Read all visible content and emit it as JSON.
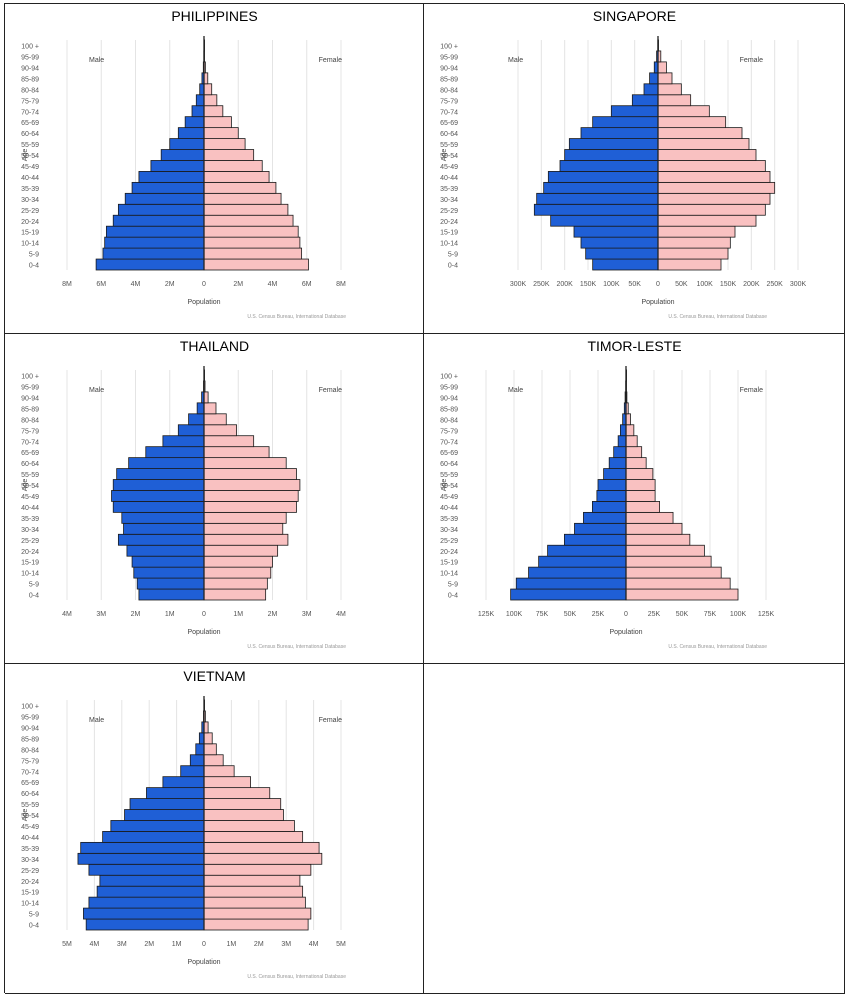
{
  "age_groups": [
    "0-4",
    "5-9",
    "10-14",
    "15-19",
    "20-24",
    "25-29",
    "30-34",
    "35-39",
    "40-44",
    "45-49",
    "50-54",
    "55-59",
    "60-64",
    "65-69",
    "70-74",
    "75-79",
    "80-84",
    "85-89",
    "90-94",
    "95-99",
    "100 +"
  ],
  "labels": {
    "male": "Male",
    "female": "Female",
    "age": "Age",
    "population": "Population",
    "source": "U.S. Census Bureau, International Database"
  },
  "colors": {
    "male": "#1f5fd6",
    "female": "#f9c1c1",
    "outline": "#1a1a1a",
    "grid": "#e4e4e4"
  },
  "chart_data": [
    {
      "type": "bar",
      "title": "PHILIPPINES",
      "xlabel": "Population",
      "ylabel": "Age",
      "xlim": [
        -8000000,
        8000000
      ],
      "x_ticks": [
        {
          "v": -8000000,
          "l": "8M"
        },
        {
          "v": -6000000,
          "l": "6M"
        },
        {
          "v": -4000000,
          "l": "4M"
        },
        {
          "v": -2000000,
          "l": "2M"
        },
        {
          "v": 0,
          "l": "0"
        },
        {
          "v": 2000000,
          "l": "2M"
        },
        {
          "v": 4000000,
          "l": "4M"
        },
        {
          "v": 6000000,
          "l": "6M"
        },
        {
          "v": 8000000,
          "l": "8M"
        }
      ],
      "series": [
        {
          "name": "Male",
          "values": [
            6300000,
            5900000,
            5800000,
            5700000,
            5300000,
            5000000,
            4600000,
            4200000,
            3800000,
            3100000,
            2500000,
            2000000,
            1500000,
            1100000,
            700000,
            450000,
            250000,
            120000,
            40000,
            10000,
            2000
          ]
        },
        {
          "name": "Female",
          "values": [
            6100000,
            5700000,
            5600000,
            5500000,
            5200000,
            4900000,
            4500000,
            4200000,
            3800000,
            3400000,
            2900000,
            2400000,
            2000000,
            1600000,
            1100000,
            750000,
            450000,
            220000,
            80000,
            20000,
            5000
          ]
        }
      ]
    },
    {
      "type": "bar",
      "title": "SINGAPORE",
      "xlabel": "Population",
      "ylabel": "Age",
      "xlim": [
        -300000,
        300000
      ],
      "x_ticks": [
        {
          "v": -300000,
          "l": "300K"
        },
        {
          "v": -250000,
          "l": "250K"
        },
        {
          "v": -200000,
          "l": "200K"
        },
        {
          "v": -150000,
          "l": "150K"
        },
        {
          "v": -100000,
          "l": "100K"
        },
        {
          "v": -50000,
          "l": "50K"
        },
        {
          "v": 0,
          "l": "0"
        },
        {
          "v": 50000,
          "l": "50K"
        },
        {
          "v": 100000,
          "l": "100K"
        },
        {
          "v": 150000,
          "l": "150K"
        },
        {
          "v": 200000,
          "l": "200K"
        },
        {
          "v": 250000,
          "l": "250K"
        },
        {
          "v": 300000,
          "l": "300K"
        }
      ],
      "series": [
        {
          "name": "Male",
          "values": [
            140000,
            155000,
            165000,
            180000,
            230000,
            265000,
            260000,
            245000,
            235000,
            210000,
            200000,
            190000,
            165000,
            140000,
            100000,
            55000,
            30000,
            18000,
            8000,
            3000,
            500
          ]
        },
        {
          "name": "Female",
          "values": [
            135000,
            150000,
            155000,
            165000,
            210000,
            230000,
            240000,
            250000,
            240000,
            230000,
            210000,
            195000,
            180000,
            145000,
            110000,
            70000,
            50000,
            30000,
            18000,
            6000,
            1000
          ]
        }
      ]
    },
    {
      "type": "bar",
      "title": "THAILAND",
      "xlabel": "Population",
      "ylabel": "Age",
      "xlim": [
        -4000000,
        4000000
      ],
      "x_ticks": [
        {
          "v": -4000000,
          "l": "4M"
        },
        {
          "v": -3000000,
          "l": "3M"
        },
        {
          "v": -2000000,
          "l": "2M"
        },
        {
          "v": -1000000,
          "l": "1M"
        },
        {
          "v": 0,
          "l": "0"
        },
        {
          "v": 1000000,
          "l": "1M"
        },
        {
          "v": 2000000,
          "l": "2M"
        },
        {
          "v": 3000000,
          "l": "3M"
        },
        {
          "v": 4000000,
          "l": "4M"
        }
      ],
      "series": [
        {
          "name": "Male",
          "values": [
            1900000,
            1950000,
            2050000,
            2100000,
            2250000,
            2500000,
            2350000,
            2400000,
            2650000,
            2700000,
            2650000,
            2550000,
            2200000,
            1700000,
            1200000,
            750000,
            450000,
            200000,
            70000,
            15000,
            2000
          ]
        },
        {
          "name": "Female",
          "values": [
            1800000,
            1850000,
            1950000,
            2000000,
            2150000,
            2450000,
            2300000,
            2400000,
            2700000,
            2750000,
            2800000,
            2700000,
            2400000,
            1900000,
            1450000,
            950000,
            650000,
            350000,
            120000,
            30000,
            5000
          ]
        }
      ]
    },
    {
      "type": "bar",
      "title": "TIMOR-LESTE",
      "xlabel": "Population",
      "ylabel": "Age",
      "xlim": [
        -125000,
        125000
      ],
      "x_ticks": [
        {
          "v": -125000,
          "l": "125K"
        },
        {
          "v": -100000,
          "l": "100K"
        },
        {
          "v": -75000,
          "l": "75K"
        },
        {
          "v": -50000,
          "l": "50K"
        },
        {
          "v": -25000,
          "l": "25K"
        },
        {
          "v": 0,
          "l": "0"
        },
        {
          "v": 25000,
          "l": "25K"
        },
        {
          "v": 50000,
          "l": "50K"
        },
        {
          "v": 75000,
          "l": "75K"
        },
        {
          "v": 100000,
          "l": "100K"
        },
        {
          "v": 125000,
          "l": "125K"
        }
      ],
      "series": [
        {
          "name": "Male",
          "values": [
            103000,
            98000,
            87000,
            78000,
            70000,
            55000,
            46000,
            38000,
            30000,
            26000,
            25000,
            20000,
            15000,
            11000,
            7000,
            5000,
            3000,
            1500,
            800,
            300,
            100
          ]
        },
        {
          "name": "Female",
          "values": [
            100000,
            93000,
            85000,
            76000,
            70000,
            57000,
            50000,
            42000,
            30000,
            26000,
            26000,
            24000,
            18000,
            14000,
            10000,
            7000,
            4000,
            2000,
            800,
            300,
            100
          ]
        }
      ]
    },
    {
      "type": "bar",
      "title": "VIETNAM",
      "xlabel": "Population",
      "ylabel": "Age",
      "xlim": [
        -5000000,
        5000000
      ],
      "x_ticks": [
        {
          "v": -5000000,
          "l": "5M"
        },
        {
          "v": -4000000,
          "l": "4M"
        },
        {
          "v": -3000000,
          "l": "3M"
        },
        {
          "v": -2000000,
          "l": "2M"
        },
        {
          "v": -1000000,
          "l": "1M"
        },
        {
          "v": 0,
          "l": "0"
        },
        {
          "v": 1000000,
          "l": "1M"
        },
        {
          "v": 2000000,
          "l": "2M"
        },
        {
          "v": 3000000,
          "l": "3M"
        },
        {
          "v": 4000000,
          "l": "4M"
        },
        {
          "v": 5000000,
          "l": "5M"
        }
      ],
      "series": [
        {
          "name": "Male",
          "values": [
            4300000,
            4400000,
            4200000,
            3900000,
            3800000,
            4200000,
            4600000,
            4500000,
            3700000,
            3400000,
            2900000,
            2700000,
            2100000,
            1500000,
            850000,
            500000,
            300000,
            170000,
            80000,
            20000,
            3000
          ]
        },
        {
          "name": "Female",
          "values": [
            3800000,
            3900000,
            3700000,
            3600000,
            3500000,
            3900000,
            4300000,
            4200000,
            3600000,
            3300000,
            2900000,
            2800000,
            2400000,
            1700000,
            1100000,
            700000,
            450000,
            300000,
            150000,
            50000,
            10000
          ]
        }
      ]
    }
  ]
}
